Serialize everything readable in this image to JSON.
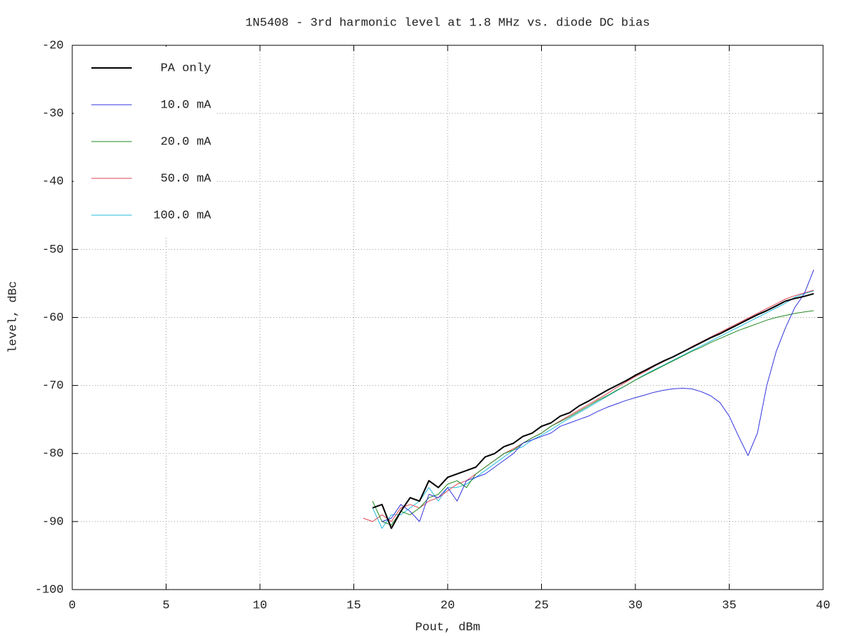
{
  "chart_data": {
    "type": "line",
    "title": "1N5408 - 3rd harmonic level at 1.8 MHz vs. diode DC bias",
    "x_label": "Pout, dBm",
    "y_label": "level, dBc",
    "xlim": [
      0,
      40
    ],
    "ylim": [
      -100,
      -20
    ],
    "xticks": [
      0,
      5,
      10,
      15,
      20,
      25,
      30,
      35,
      40
    ],
    "yticks": [
      -100,
      -90,
      -80,
      -70,
      -60,
      -50,
      -40,
      -30,
      -20
    ],
    "grid": true,
    "legend": "top-left",
    "x": [
      15.5,
      16,
      16.5,
      17,
      17.5,
      18,
      18.5,
      19,
      19.5,
      20,
      20.5,
      21,
      21.5,
      22,
      22.5,
      23,
      23.5,
      24,
      24.5,
      25,
      25.5,
      26,
      26.5,
      27,
      27.5,
      28,
      28.5,
      29,
      29.5,
      30,
      30.5,
      31,
      31.5,
      32,
      32.5,
      33,
      33.5,
      34,
      34.5,
      35,
      35.5,
      36,
      36.5,
      37,
      37.5,
      38,
      38.5,
      39,
      39.5
    ],
    "series": [
      {
        "name": "PA only",
        "color": "#000000",
        "values": [
          null,
          -88,
          -87.5,
          -91,
          -88.5,
          -86.5,
          -87,
          -84,
          -85,
          -83.5,
          -83,
          -82.5,
          -82,
          -80.5,
          -80,
          -79,
          -78.5,
          -77.5,
          -77,
          -76,
          -75.5,
          -74.5,
          -74,
          -73,
          -72.3,
          -71.5,
          -70.7,
          -70,
          -69.3,
          -68.5,
          -67.8,
          -67.1,
          -66.4,
          -65.8,
          -65.1,
          -64.4,
          -63.7,
          -63.0,
          -62.4,
          -61.7,
          -61.0,
          -60.3,
          -59.6,
          -59.0,
          -58.3,
          -57.6,
          -57.2,
          -56.9,
          -56.5
        ]
      },
      {
        "name": "10.0 mA",
        "color": "#3333dd",
        "values": [
          null,
          null,
          -90,
          -89.5,
          -87.5,
          -88.5,
          -90,
          -86,
          -86.5,
          -85,
          -87,
          -84,
          -83.5,
          -83,
          -82,
          -81,
          -80,
          -78.5,
          -78,
          -77.5,
          -77,
          -76,
          -75.5,
          -75,
          -74.5,
          -73.8,
          -73.2,
          -72.7,
          -72.2,
          -71.8,
          -71.4,
          -71,
          -70.7,
          -70.5,
          -70.4,
          -70.5,
          -70.9,
          -71.5,
          -72.5,
          -74.5,
          -77.5,
          -80.3,
          -77,
          -70,
          -65,
          -61.5,
          -58.5,
          -56.5,
          -53
        ]
      },
      {
        "name": "20.0 mA",
        "color": "#228822",
        "values": [
          null,
          -87,
          -90,
          -90.5,
          -88.5,
          -89,
          -88,
          -86.5,
          -86,
          -84.5,
          -84,
          -85,
          -83,
          -82,
          -81,
          -80,
          -79.5,
          -78.5,
          -77.7,
          -77,
          -76,
          -75.3,
          -74.6,
          -73.8,
          -73,
          -72.2,
          -71.5,
          -70.7,
          -70,
          -69.2,
          -68.5,
          -67.8,
          -67.1,
          -66.4,
          -65.7,
          -65.0,
          -64.4,
          -63.7,
          -63.1,
          -62.5,
          -61.9,
          -61.4,
          -60.9,
          -60.4,
          -60.0,
          -59.7,
          -59.4,
          -59.2,
          -59.0
        ]
      },
      {
        "name": "50.0 mA",
        "color": "#dd4455",
        "values": [
          -89.5,
          -90,
          -89,
          -90,
          -88,
          -87.5,
          -88,
          -87,
          -86.5,
          -85.5,
          -84.5,
          -84,
          -83,
          -82,
          -81,
          -80,
          -79.3,
          -78.5,
          -77.7,
          -77,
          -76,
          -75.2,
          -74.4,
          -73.6,
          -72.8,
          -72.0,
          -71.2,
          -70.3,
          -69.5,
          -68.7,
          -68,
          -67.2,
          -66.5,
          -65.8,
          -65.1,
          -64.3,
          -63.6,
          -62.9,
          -62.2,
          -61.5,
          -60.8,
          -60.1,
          -59.4,
          -58.7,
          -58.0,
          -57.3,
          -56.8,
          -56.4,
          -56.0
        ]
      },
      {
        "name": "100.0 mA",
        "color": "#22bbdd",
        "values": [
          null,
          -88,
          -91,
          -89,
          -89,
          -88,
          -87,
          -85,
          -87,
          -85,
          -85,
          -84.5,
          -83.5,
          -82.5,
          -81.5,
          -80.5,
          -79.5,
          -79,
          -78,
          -77.3,
          -76.5,
          -75.6,
          -74.8,
          -74,
          -73.2,
          -72.4,
          -71.6,
          -70.8,
          -70,
          -69.2,
          -68.4,
          -67.7,
          -67,
          -66.3,
          -65.6,
          -64.9,
          -64.2,
          -63.5,
          -62.8,
          -62.1,
          -61.4,
          -60.7,
          -60,
          -59.3,
          -58.6,
          -57.9,
          -57,
          -56.5,
          -56.1
        ]
      }
    ]
  }
}
